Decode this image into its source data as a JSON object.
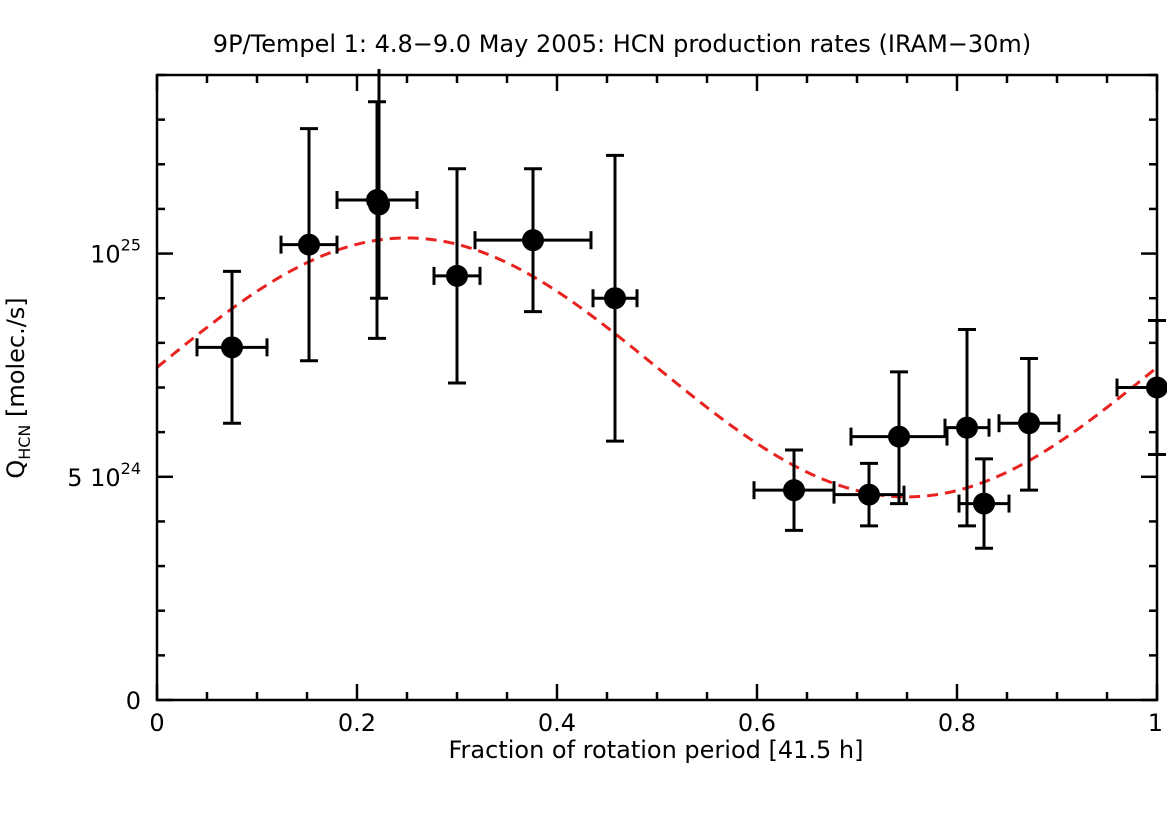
{
  "chart_data": {
    "type": "scatter",
    "title": "9P/Tempel 1: 4.8−9.0 May 2005: HCN production rates (IRAM−30m)",
    "xlabel": "Fraction of rotation period [41.5 h]",
    "ylabel": {
      "main": "Q",
      "subscript": "HCN",
      "unit": " [molec./s]"
    },
    "xlim": [
      0,
      1
    ],
    "ylim": [
      0,
      1.4e+25
    ],
    "x_ticks": [
      {
        "value": 0,
        "label": "0"
      },
      {
        "value": 0.2,
        "label": "0.2"
      },
      {
        "value": 0.4,
        "label": "0.4"
      },
      {
        "value": 0.6,
        "label": "0.6"
      },
      {
        "value": 0.8,
        "label": "0.8"
      },
      {
        "value": 1.0,
        "label": "1"
      }
    ],
    "y_ticks": [
      {
        "value": 0,
        "mantissa": "0",
        "exponent": ""
      },
      {
        "value": 5e+24,
        "mantissa": "5 10",
        "exponent": "24"
      },
      {
        "value": 1e+25,
        "mantissa": "10",
        "exponent": "25"
      }
    ],
    "x_minor_step": 0.05,
    "y_minor_step": 1e+24,
    "colors": {
      "points": "#000000",
      "fit": "#e8231f",
      "axes": "#000000"
    },
    "series": [
      {
        "points": [
          {
            "x": 0.075,
            "xerr": 0.035,
            "y": 7.9e+24,
            "ylo": 6.2e+24,
            "yhi": 9.6e+24
          },
          {
            "x": 0.152,
            "xerr": 0.028,
            "y": 1.02e+25,
            "ylo": 7.6e+24,
            "yhi": 1.28e+25
          },
          {
            "x": 0.22,
            "xerr": 0.04,
            "y": 1.12e+25,
            "ylo": 8.1e+24,
            "yhi": 1.34e+25
          },
          {
            "x": 0.222,
            "xerr": 0.0,
            "y": 1.11e+25,
            "ylo": 9e+24,
            "yhi": 1.42e+25
          },
          {
            "x": 0.3,
            "xerr": 0.023,
            "y": 9.5e+24,
            "ylo": 7.1e+24,
            "yhi": 1.19e+25
          },
          {
            "x": 0.376,
            "xerr": 0.058,
            "y": 1.03e+25,
            "ylo": 8.7e+24,
            "yhi": 1.19e+25
          },
          {
            "x": 0.458,
            "xerr": 0.022,
            "y": 9e+24,
            "ylo": 5.8e+24,
            "yhi": 1.22e+25
          },
          {
            "x": 0.637,
            "xerr": 0.04,
            "y": 4.7e+24,
            "ylo": 3.8e+24,
            "yhi": 5.6e+24
          },
          {
            "x": 0.712,
            "xerr": 0.035,
            "y": 4.6e+24,
            "ylo": 3.9e+24,
            "yhi": 5.3e+24
          },
          {
            "x": 0.742,
            "xerr": 0.048,
            "y": 5.9e+24,
            "ylo": 4.4e+24,
            "yhi": 7.35e+24
          },
          {
            "x": 0.81,
            "xerr": 0.022,
            "y": 6.1e+24,
            "ylo": 3.9e+24,
            "yhi": 8.3e+24
          },
          {
            "x": 0.827,
            "xerr": 0.025,
            "y": 4.4e+24,
            "ylo": 3.4e+24,
            "yhi": 5.4e+24
          },
          {
            "x": 0.872,
            "xerr": 0.03,
            "y": 6.2e+24,
            "ylo": 4.7e+24,
            "yhi": 7.65e+24
          },
          {
            "x": 1.0,
            "xerr": 0.04,
            "y": 7e+24,
            "ylo": 5.5e+24,
            "yhi": 8.5e+24
          }
        ]
      }
    ],
    "fit_curve": {
      "style": "dashed",
      "form": "sinusoid",
      "mean": 7.45e+24,
      "amplitude": 2.9e+24,
      "period": 1.0
    }
  }
}
